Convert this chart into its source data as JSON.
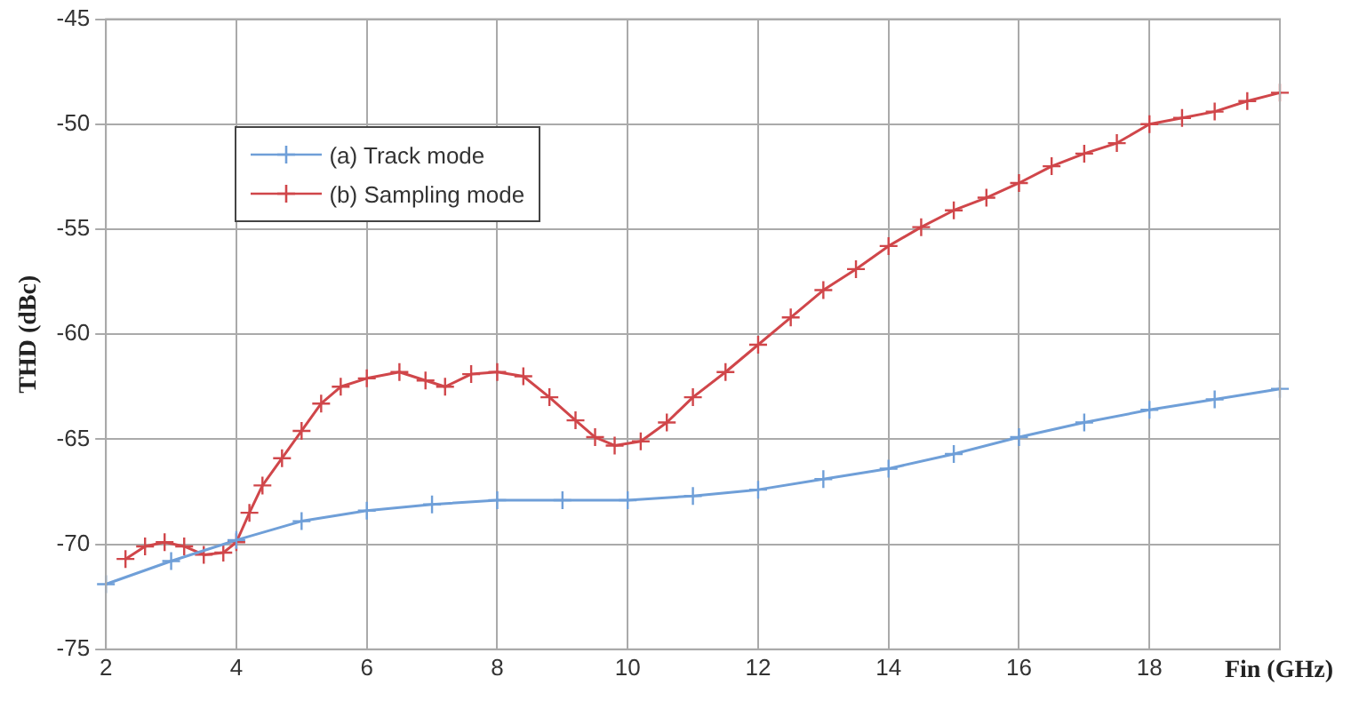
{
  "chart_data": {
    "type": "line",
    "xlabel": "Fin (GHz)",
    "ylabel": "THD (dBc)",
    "xlim": [
      2,
      20
    ],
    "xticks": [
      2,
      4,
      6,
      8,
      10,
      12,
      14,
      16,
      18,
      {
        "value": 20,
        "label": null
      }
    ],
    "ylim": [
      -75,
      -45
    ],
    "yticks": [
      -75,
      -70,
      -65,
      -60,
      -55,
      -50,
      -45
    ],
    "grid": true,
    "legend": "top left",
    "line_style": "solid",
    "series": [
      {
        "name": "(a) Track mode",
        "color": "#6f9fd8",
        "marker": "cross",
        "x": [
          2,
          3,
          4,
          5,
          6,
          7,
          8,
          9,
          10,
          11,
          12,
          13,
          14,
          15,
          16,
          17,
          18,
          19,
          20
        ],
        "values": [
          -71.9,
          -70.8,
          -69.8,
          -68.9,
          -68.4,
          -68.1,
          -67.9,
          -67.9,
          -67.9,
          -67.7,
          -67.4,
          -66.9,
          -66.4,
          -65.7,
          -64.9,
          -64.2,
          -63.6,
          -63.1,
          -62.6
        ]
      },
      {
        "name": "(b) Sampling mode",
        "color": "#d0464a",
        "marker": "cross",
        "x": [
          2.3,
          2.6,
          2.9,
          3.2,
          3.5,
          3.8,
          4.0,
          4.2,
          4.4,
          4.7,
          5.0,
          5.3,
          5.6,
          6.0,
          6.5,
          6.9,
          7.2,
          7.6,
          8.0,
          8.4,
          8.8,
          9.2,
          9.5,
          9.8,
          10.2,
          10.6,
          11.0,
          11.5,
          12.0,
          12.5,
          13.0,
          13.5,
          14.0,
          14.5,
          15.0,
          15.5,
          16.0,
          16.5,
          17.0,
          17.5,
          18.0,
          18.5,
          19.0,
          19.5,
          20.0
        ],
        "values": [
          -70.7,
          -70.1,
          -69.9,
          -70.1,
          -70.5,
          -70.4,
          -69.9,
          -68.5,
          -67.2,
          -65.9,
          -64.6,
          -63.3,
          -62.5,
          -62.1,
          -61.8,
          -62.2,
          -62.5,
          -61.9,
          -61.8,
          -62.0,
          -63.0,
          -64.1,
          -64.9,
          -65.3,
          -65.1,
          -64.2,
          -63.0,
          -61.8,
          -60.5,
          -59.2,
          -57.9,
          -56.9,
          -55.8,
          -54.9,
          -54.1,
          -53.5,
          -52.8,
          -52.0,
          -51.4,
          -50.9,
          -50.0,
          -49.7,
          -49.4,
          -48.9,
          -48.5
        ]
      }
    ]
  }
}
